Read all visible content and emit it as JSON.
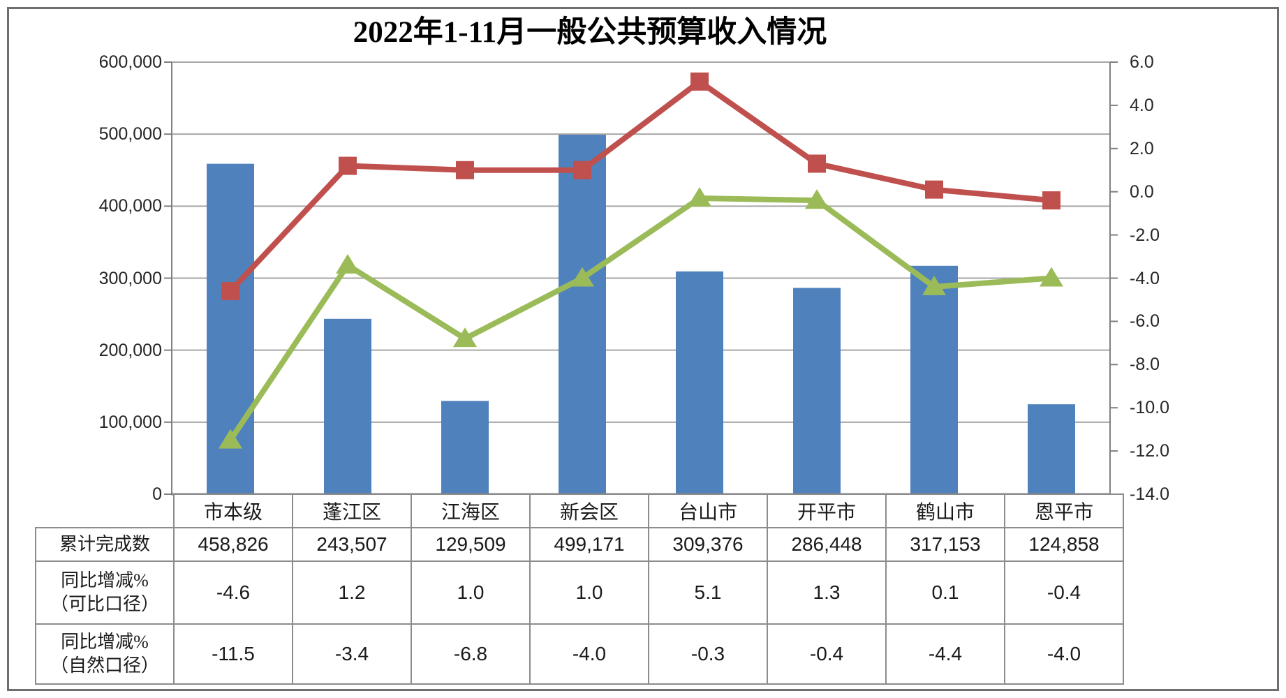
{
  "title": "2022年1-11月一般公共预算收入情况",
  "chart_data": {
    "type": "combo-bar-line",
    "title": "2022年1-11月一般公共预算收入情况",
    "categories": [
      "市本级",
      "蓬江区",
      "江海区",
      "新会区",
      "台山市",
      "开平市",
      "鹤山市",
      "恩平市"
    ],
    "series": [
      {
        "name": "累计完成数",
        "name_lines": [
          "累计完成数"
        ],
        "type": "bar",
        "axis": "left",
        "color": "#4F81BD",
        "values": [
          458826,
          243507,
          129509,
          499171,
          309376,
          286448,
          317153,
          124858
        ],
        "labels": [
          "458,826",
          "243,507",
          "129,509",
          "499,171",
          "309,376",
          "286,448",
          "317,153",
          "124,858"
        ]
      },
      {
        "name": "同比增减%（可比口径）",
        "name_lines": [
          "同比增减%",
          "（可比口径）"
        ],
        "type": "line",
        "marker": "square",
        "axis": "right",
        "color": "#C0504D",
        "values": [
          -4.6,
          1.2,
          1.0,
          1.0,
          5.1,
          1.3,
          0.1,
          -0.4
        ],
        "labels": [
          "-4.6",
          "1.2",
          "1.0",
          "1.0",
          "5.1",
          "1.3",
          "0.1",
          "-0.4"
        ]
      },
      {
        "name": "同比增减%（自然口径）",
        "name_lines": [
          "同比增减%",
          "（自然口径）"
        ],
        "type": "line",
        "marker": "triangle",
        "axis": "right",
        "color": "#9BBB59",
        "values": [
          -11.5,
          -3.4,
          -6.8,
          -4.0,
          -0.3,
          -0.4,
          -4.4,
          -4.0
        ],
        "labels": [
          "-11.5",
          "-3.4",
          "-6.8",
          "-4.0",
          "-0.3",
          "-0.4",
          "-4.4",
          "-4.0"
        ]
      }
    ],
    "left_axis": {
      "min": 0,
      "max": 600000,
      "step": 100000,
      "tick_labels": [
        "600,000",
        "500,000",
        "400,000",
        "300,000",
        "200,000",
        "100,000",
        "0"
      ]
    },
    "right_axis": {
      "min": -14.0,
      "max": 6.0,
      "step": 2.0,
      "tick_labels": [
        "6.0",
        "4.0",
        "2.0",
        "0.0",
        "-2.0",
        "-4.0",
        "-6.0",
        "-8.0",
        "-10.0",
        "-12.0",
        "-14.0"
      ]
    },
    "grid": "horizontal-left-axis",
    "legend": "none"
  },
  "style": {
    "bar_color": "#4F81BD",
    "line1_color": "#C0504D",
    "line2_color": "#9BBB59",
    "grid_color": "#a6a6a6",
    "axis_color": "#808080",
    "table_border_color": "#8c8c8c"
  }
}
